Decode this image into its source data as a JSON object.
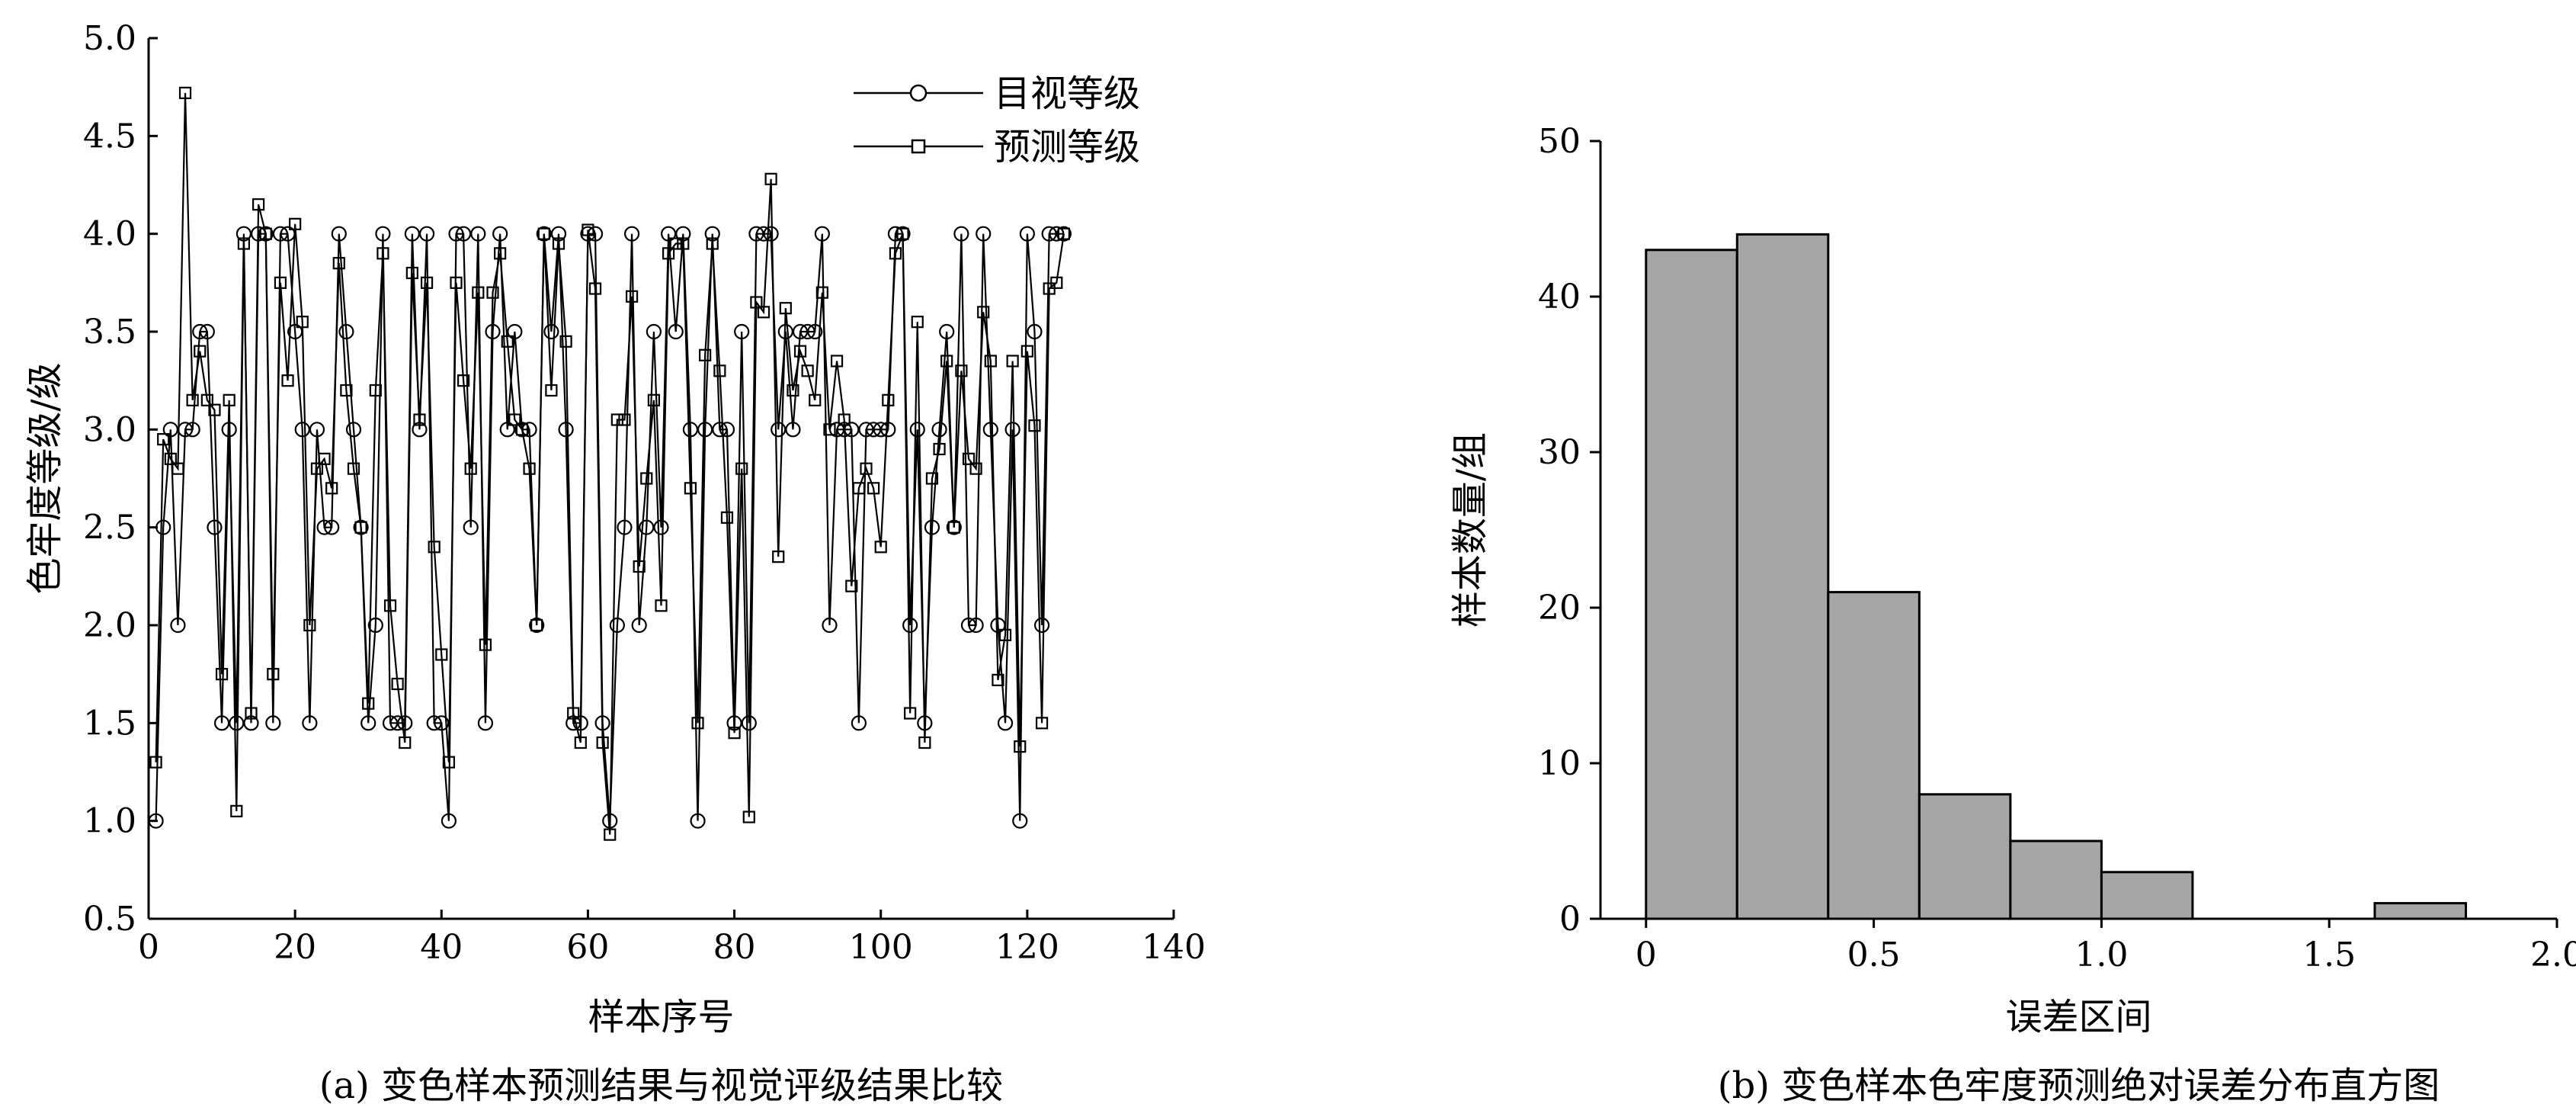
{
  "chart_data": [
    {
      "type": "line",
      "caption": "(a) 变色样本预测结果与视觉评级结果比较",
      "xlabel": "样本序号",
      "ylabel": "色牢度等级/级",
      "xlim": [
        0,
        140
      ],
      "ylim": [
        0.5,
        5.0
      ],
      "x_ticks": [
        "0",
        "20",
        "40",
        "60",
        "80",
        "100",
        "120",
        "140"
      ],
      "y_ticks": [
        "0.5",
        "1.0",
        "1.5",
        "2.0",
        "2.5",
        "3.0",
        "3.5",
        "4.0",
        "4.5",
        "5.0"
      ],
      "legend_position": "top-right",
      "x": [
        1,
        2,
        3,
        4,
        5,
        6,
        7,
        8,
        9,
        10,
        11,
        12,
        13,
        14,
        15,
        16,
        17,
        18,
        19,
        20,
        21,
        22,
        23,
        24,
        25,
        26,
        27,
        28,
        29,
        30,
        31,
        32,
        33,
        34,
        35,
        36,
        37,
        38,
        39,
        40,
        41,
        42,
        43,
        44,
        45,
        46,
        47,
        48,
        49,
        50,
        51,
        52,
        53,
        54,
        55,
        56,
        57,
        58,
        59,
        60,
        61,
        62,
        63,
        64,
        65,
        66,
        67,
        68,
        69,
        70,
        71,
        72,
        73,
        74,
        75,
        76,
        77,
        78,
        79,
        80,
        81,
        82,
        83,
        84,
        85,
        86,
        87,
        88,
        89,
        90,
        91,
        92,
        93,
        94,
        95,
        96,
        97,
        98,
        99,
        100,
        101,
        102,
        103,
        104,
        105,
        106,
        107,
        108,
        109,
        110,
        111,
        112,
        113,
        114,
        115,
        116,
        117,
        118,
        119,
        120,
        121,
        122,
        123,
        124,
        125
      ],
      "series": [
        {
          "name": "目视等级",
          "marker": "circle",
          "values": [
            1.0,
            2.5,
            3.0,
            2.0,
            3.0,
            3.0,
            3.5,
            3.5,
            2.5,
            1.5,
            3.0,
            1.5,
            4.0,
            1.5,
            4.0,
            4.0,
            1.5,
            4.0,
            4.0,
            3.5,
            3.0,
            1.5,
            3.0,
            2.5,
            2.5,
            4.0,
            3.5,
            3.0,
            2.5,
            1.5,
            2.0,
            4.0,
            1.5,
            1.5,
            1.5,
            4.0,
            3.0,
            4.0,
            1.5,
            1.5,
            1.0,
            4.0,
            4.0,
            2.5,
            4.0,
            1.5,
            3.5,
            4.0,
            3.0,
            3.5,
            3.0,
            3.0,
            2.0,
            4.0,
            3.5,
            4.0,
            3.0,
            1.5,
            1.5,
            4.0,
            4.0,
            1.5,
            1.0,
            2.0,
            2.5,
            4.0,
            2.0,
            2.5,
            3.5,
            2.5,
            4.0,
            3.5,
            4.0,
            3.0,
            1.0,
            3.0,
            4.0,
            3.0,
            3.0,
            1.5,
            3.5,
            1.5,
            4.0,
            4.0,
            4.0,
            3.0,
            3.5,
            3.0,
            3.5,
            3.5,
            3.5,
            4.0,
            2.0,
            3.0,
            3.0,
            3.0,
            1.5,
            3.0,
            3.0,
            3.0,
            3.0,
            4.0,
            4.0,
            2.0,
            3.0,
            1.5,
            2.5,
            3.0,
            3.5,
            2.5,
            4.0,
            2.0,
            2.0,
            4.0,
            3.0,
            2.0,
            1.5,
            3.0,
            1.0,
            4.0,
            3.5,
            2.0,
            4.0,
            4.0,
            4.0
          ]
        },
        {
          "name": "预测等级",
          "marker": "square",
          "values": [
            1.3,
            2.95,
            2.85,
            2.8,
            4.72,
            3.15,
            3.4,
            3.15,
            3.1,
            1.75,
            3.15,
            1.05,
            3.95,
            1.55,
            4.15,
            4.0,
            1.75,
            3.75,
            3.25,
            4.05,
            3.55,
            2.0,
            2.8,
            2.85,
            2.7,
            3.85,
            3.2,
            2.8,
            2.5,
            1.6,
            3.2,
            3.9,
            2.1,
            1.7,
            1.4,
            3.8,
            3.05,
            3.75,
            2.4,
            1.85,
            1.3,
            3.75,
            3.25,
            2.8,
            3.7,
            1.9,
            3.7,
            3.9,
            3.45,
            3.05,
            3.0,
            2.8,
            2.0,
            4.0,
            3.2,
            3.95,
            3.45,
            1.55,
            1.4,
            4.02,
            3.72,
            1.4,
            0.93,
            3.05,
            3.05,
            3.68,
            2.3,
            2.75,
            3.15,
            2.1,
            3.9,
            3.95,
            3.95,
            2.7,
            1.5,
            3.38,
            3.95,
            3.3,
            2.55,
            1.45,
            2.8,
            1.02,
            3.65,
            3.6,
            4.28,
            2.35,
            3.62,
            3.2,
            3.4,
            3.3,
            3.15,
            3.7,
            3.0,
            3.35,
            3.05,
            2.2,
            2.7,
            2.8,
            2.7,
            2.4,
            3.15,
            3.9,
            4.0,
            1.55,
            3.55,
            1.4,
            2.75,
            2.9,
            3.35,
            2.5,
            3.3,
            2.85,
            2.8,
            3.6,
            3.35,
            1.72,
            1.95,
            3.35,
            1.38,
            3.4,
            3.02,
            1.5,
            3.72,
            3.75,
            4.0
          ]
        }
      ]
    },
    {
      "type": "bar",
      "subtype": "histogram",
      "caption": "(b) 变色样本色牢度预测绝对误差分布直方图",
      "xlabel": "误差区间",
      "ylabel": "样本数量/组",
      "xlim": [
        -0.1,
        2.0
      ],
      "ylim": [
        0,
        50
      ],
      "x_ticks": [
        "0",
        "0.5",
        "1.0",
        "1.5",
        "2.0"
      ],
      "y_ticks": [
        "0",
        "10",
        "20",
        "30",
        "40",
        "50"
      ],
      "bin_edges": [
        0.0,
        0.2,
        0.4,
        0.6,
        0.8,
        1.0,
        1.2,
        1.4,
        1.6,
        1.8
      ],
      "values": [
        43,
        44,
        21,
        8,
        5,
        3,
        0,
        0,
        1
      ],
      "bar_color": "#a6a6a6",
      "edge_color": "#000000"
    }
  ]
}
